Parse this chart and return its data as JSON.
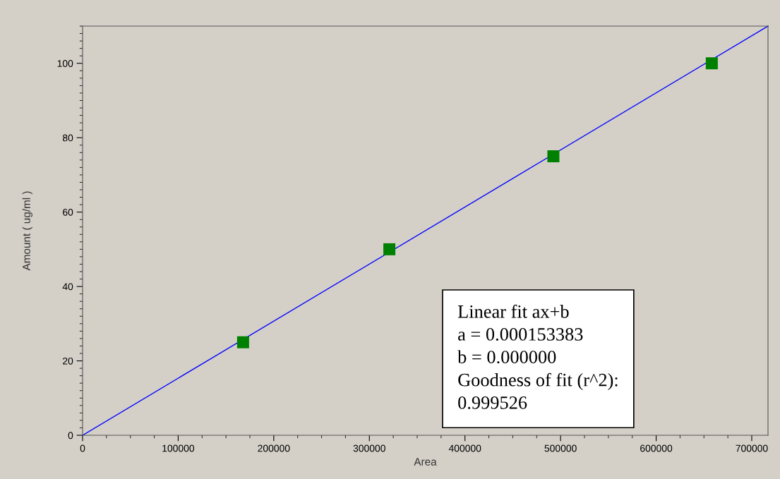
{
  "chart_data": {
    "type": "scatter",
    "xlabel": "Area",
    "ylabel": "Amount ( ug/ml )",
    "xlim": [
      0,
      717000
    ],
    "xticks": [
      0,
      100000,
      200000,
      300000,
      400000,
      500000,
      600000,
      700000
    ],
    "ylim": [
      0,
      110
    ],
    "yticks": [
      0,
      20,
      40,
      60,
      80,
      100
    ],
    "x": [
      167900,
      320900,
      492500,
      658200
    ],
    "series": [
      {
        "color": "#008000",
        "marker": "square",
        "values": [
          25,
          50,
          75,
          100
        ]
      },
      {
        "type": "line",
        "color": "#0000ff",
        "marker": "none",
        "line_style": "solid",
        "x": [
          0,
          717000
        ],
        "values": [
          0,
          110
        ]
      }
    ],
    "grid": false,
    "legend": false,
    "annotations": [
      "Linear fit ax+b",
      "a = 0.000153383",
      "b = 0.000000",
      "Goodness of fit (r^2):",
      "0.999526"
    ]
  }
}
